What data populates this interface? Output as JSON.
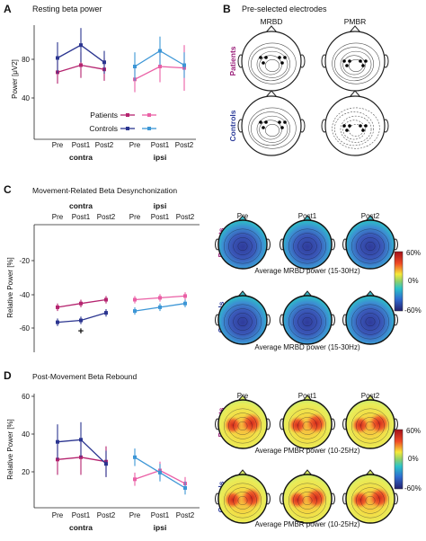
{
  "panels": {
    "A": {
      "letter": "A",
      "title": "Resting beta power",
      "ylabel": "Power [μV2]",
      "yticks": [
        "40",
        "80"
      ],
      "xticks": [
        "Pre",
        "Post1",
        "Post2",
        "Pre",
        "Post1",
        "Post2"
      ],
      "groups": [
        "contra",
        "ipsi"
      ],
      "legend": [
        "Patients",
        "Controls"
      ]
    },
    "B": {
      "letter": "B",
      "title": "Pre-selected electrodes",
      "columns": [
        "MRBD",
        "PMBR"
      ],
      "rows": [
        "Patients",
        "Controls"
      ]
    },
    "C": {
      "letter": "C",
      "title": "Movement-Related Beta Desynchonization",
      "ylabel": "Relative Power [%]",
      "yticks": [
        "-20",
        "-40",
        "-60"
      ],
      "xticks_top": [
        "Pre",
        "Post1",
        "Post2",
        "Pre",
        "Post1",
        "Post2"
      ],
      "groups": [
        "contra",
        "ipsi"
      ],
      "marker": "+",
      "maps": {
        "columns": [
          "Pre",
          "Post1",
          "Post2"
        ],
        "rows": [
          "Patients",
          "Controls"
        ],
        "caption_patients": "Average MRBD power (15-30Hz)",
        "caption_controls": "Average MRBD power (15-30Hz)",
        "colorbar_ticks": [
          "60%",
          "0%",
          "-60%"
        ]
      }
    },
    "D": {
      "letter": "D",
      "title": "Post-Movement Beta Rebound",
      "ylabel": "Relative Power [%]",
      "yticks": [
        "60",
        "40",
        "20"
      ],
      "xticks": [
        "Pre",
        "Post1",
        "Post2",
        "Pre",
        "Post1",
        "Post2"
      ],
      "groups": [
        "contra",
        "ipsi"
      ],
      "maps": {
        "columns": [
          "Pre",
          "Post1",
          "Post2"
        ],
        "rows": [
          "Patients",
          "Controls"
        ],
        "caption_patients": "Average PMBR power (10-25Hz)",
        "caption_controls": "Average PMBR power (10-25Hz)",
        "colorbar_ticks": [
          "60%",
          "0%",
          "-60%"
        ]
      }
    }
  },
  "colors": {
    "patients_contra": "#b5246f",
    "patients_ipsi": "#ea5fa5",
    "controls_contra": "#2b3590",
    "controls_ipsi": "#3c96d6",
    "patients_label": "#9b1f7a",
    "controls_label": "#2c3c9a"
  },
  "chart_data": [
    {
      "type": "line",
      "panel": "A",
      "ylim": [
        20,
        100
      ],
      "x": [
        "Pre",
        "Post1",
        "Post2"
      ],
      "series": [
        {
          "name": "Patients",
          "hemisphere": "contra",
          "values": [
            67,
            72,
            69
          ],
          "errors": [
            8,
            9,
            8
          ]
        },
        {
          "name": "Controls",
          "hemisphere": "contra",
          "values": [
            77,
            86,
            74
          ],
          "errors": [
            11,
            12,
            8
          ]
        },
        {
          "name": "Patients",
          "hemisphere": "ipsi",
          "values": [
            62,
            71,
            70
          ],
          "errors": [
            9,
            11,
            16
          ]
        },
        {
          "name": "Controls",
          "hemisphere": "ipsi",
          "values": [
            71,
            82,
            72
          ],
          "errors": [
            10,
            10,
            9
          ]
        }
      ]
    },
    {
      "type": "line",
      "panel": "C",
      "ylim": [
        -68,
        0
      ],
      "x": [
        "Pre",
        "Post1",
        "Post2"
      ],
      "series": [
        {
          "name": "Patients",
          "hemisphere": "contra",
          "values": [
            -44,
            -42,
            -40
          ],
          "errors": [
            2,
            2,
            2
          ]
        },
        {
          "name": "Controls",
          "hemisphere": "contra",
          "values": [
            -52,
            -51,
            -47
          ],
          "errors": [
            2,
            2,
            2
          ]
        },
        {
          "name": "Patients",
          "hemisphere": "ipsi",
          "values": [
            -40,
            -39,
            -38
          ],
          "errors": [
            2,
            2,
            2
          ]
        },
        {
          "name": "Controls",
          "hemisphere": "ipsi",
          "values": [
            -46,
            -44,
            -42
          ],
          "errors": [
            2,
            2,
            2
          ]
        }
      ]
    },
    {
      "type": "line",
      "panel": "D",
      "ylim": [
        10,
        62
      ],
      "x": [
        "Pre",
        "Post1",
        "Post2"
      ],
      "series": [
        {
          "name": "Patients",
          "hemisphere": "contra",
          "values": [
            32,
            33,
            31
          ],
          "errors": [
            7,
            8,
            7
          ]
        },
        {
          "name": "Controls",
          "hemisphere": "contra",
          "values": [
            40,
            41,
            30
          ],
          "errors": [
            8,
            8,
            6
          ]
        },
        {
          "name": "Patients",
          "hemisphere": "ipsi",
          "values": [
            23,
            27,
            21
          ],
          "errors": [
            3,
            4,
            3
          ]
        },
        {
          "name": "Controls",
          "hemisphere": "ipsi",
          "values": [
            33,
            26,
            19
          ],
          "errors": [
            4,
            4,
            3
          ]
        }
      ]
    }
  ]
}
